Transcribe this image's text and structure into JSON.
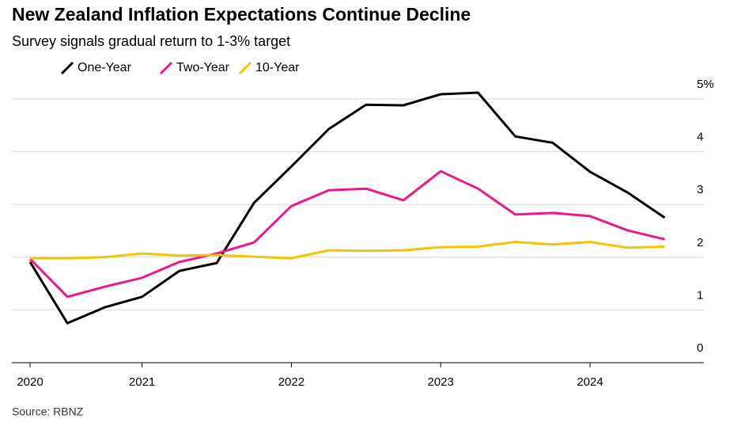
{
  "chart_data": {
    "type": "line",
    "title": "New Zealand Inflation Expectations Continue Decline",
    "subtitle": "Survey signals gradual return to 1-3% target",
    "source": "Source: RBNZ",
    "categories": [
      "2020",
      null,
      null,
      "2021",
      null,
      null,
      null,
      "2022",
      null,
      null,
      null,
      "2023",
      null,
      null,
      null,
      "2024",
      null,
      null
    ],
    "series": [
      {
        "name": "One-Year",
        "color": "#000000",
        "values": [
          1.91,
          0.75,
          1.05,
          1.25,
          1.74,
          1.89,
          3.03,
          3.72,
          4.43,
          4.89,
          4.88,
          5.09,
          5.12,
          4.29,
          4.17,
          3.62,
          3.23,
          2.75
        ]
      },
      {
        "name": "Two-Year",
        "color": "#f0168c",
        "values": [
          1.97,
          1.25,
          1.44,
          1.61,
          1.91,
          2.07,
          2.28,
          2.97,
          3.27,
          3.3,
          3.08,
          3.63,
          3.3,
          2.81,
          2.84,
          2.78,
          2.51,
          2.34
        ]
      },
      {
        "name": "10-Year",
        "color": "#f5c400",
        "values": [
          1.98,
          1.98,
          2.0,
          2.07,
          2.03,
          2.04,
          2.01,
          1.98,
          2.13,
          2.12,
          2.13,
          2.19,
          2.2,
          2.29,
          2.24,
          2.29,
          2.18,
          2.2
        ]
      }
    ],
    "ylim": [
      0,
      5
    ],
    "yticks": [
      0,
      1,
      2,
      3,
      4,
      {
        "value": 5,
        "label": "5%"
      }
    ],
    "grid": true
  }
}
